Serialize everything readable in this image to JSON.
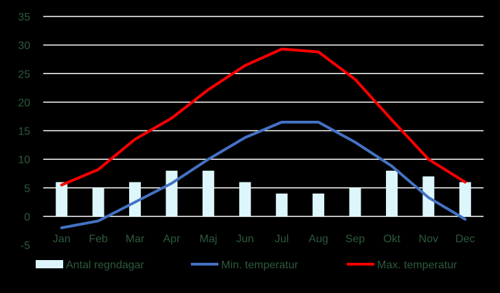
{
  "chart_data": {
    "type": "bar+line",
    "title": "",
    "xlabel": "",
    "ylabel": "",
    "categories": [
      "Jan",
      "Feb",
      "Mar",
      "Apr",
      "Maj",
      "Jun",
      "Jul",
      "Aug",
      "Sep",
      "Okt",
      "Nov",
      "Dec"
    ],
    "ylim": [
      -5,
      35
    ],
    "yticks": [
      -5,
      0,
      5,
      10,
      15,
      20,
      25,
      30,
      35
    ],
    "grid": true,
    "legend_position": "bottom",
    "series": [
      {
        "name": "Antal regndagar",
        "type": "bar",
        "color": "#ddf6fb",
        "values": [
          6,
          5,
          6,
          8,
          8,
          6,
          4,
          4,
          5,
          8,
          7,
          6
        ]
      },
      {
        "name": "Min. temperatur",
        "type": "line",
        "color": "#4472c4",
        "values": [
          -2,
          -0.8,
          2.5,
          5.8,
          10,
          13.8,
          16.5,
          16.5,
          13,
          8.8,
          3.3,
          -0.5
        ]
      },
      {
        "name": "Max. temperatur",
        "type": "line",
        "color": "#ff0000",
        "values": [
          5.5,
          8.2,
          13.5,
          17.2,
          22.2,
          26.4,
          29.3,
          28.8,
          24,
          16.9,
          10,
          6
        ]
      }
    ]
  },
  "colors": {
    "background": "#000000",
    "gridline": "#ffffff",
    "text": "#2d5a3d"
  }
}
